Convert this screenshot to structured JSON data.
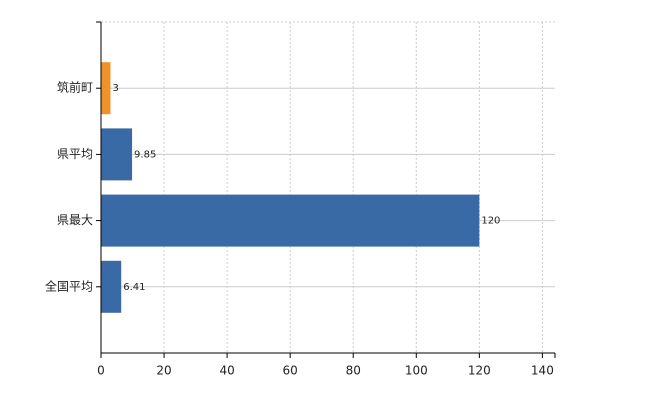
{
  "chart_data": {
    "type": "hbar",
    "categories": [
      "筑前町",
      "県平均",
      "県最大",
      "全国平均"
    ],
    "values": [
      3,
      9.85,
      120,
      6.41
    ],
    "colors": [
      "#f0922c",
      "#3a6aa6",
      "#3a6aa6",
      "#3a6aa6"
    ],
    "xlim": [
      0,
      144
    ],
    "xticks": [
      0,
      20,
      40,
      60,
      80,
      100,
      120,
      140
    ],
    "grid": true
  }
}
